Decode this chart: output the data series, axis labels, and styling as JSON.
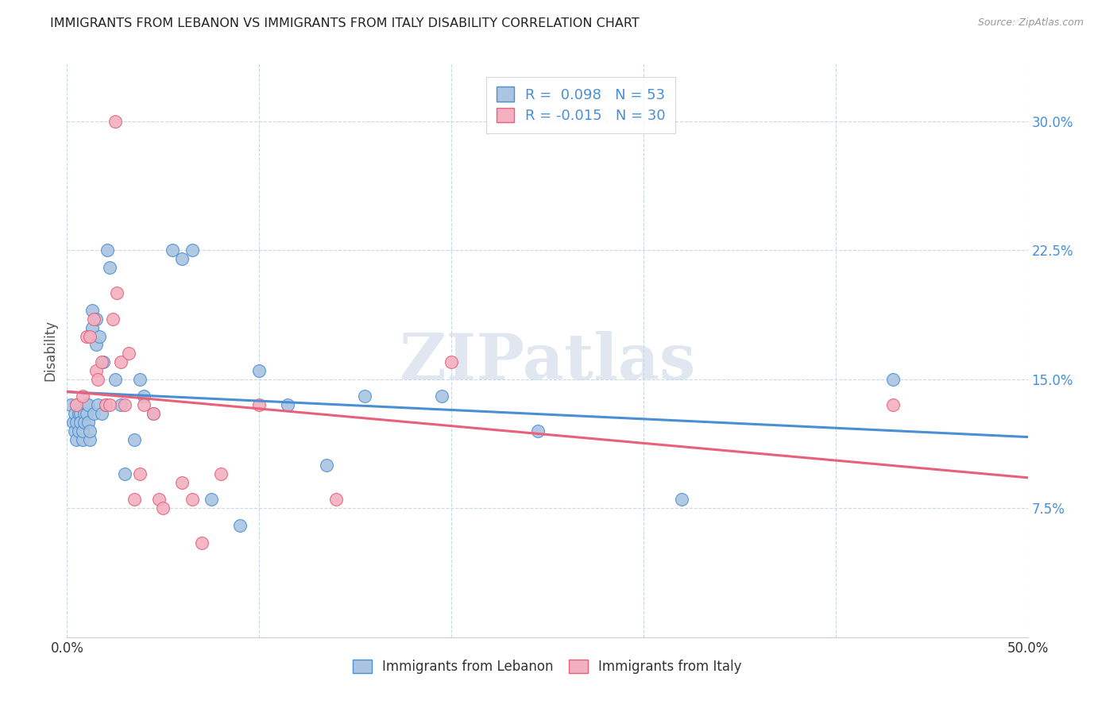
{
  "title": "IMMIGRANTS FROM LEBANON VS IMMIGRANTS FROM ITALY DISABILITY CORRELATION CHART",
  "source": "Source: ZipAtlas.com",
  "ylabel": "Disability",
  "xlim": [
    0.0,
    0.5
  ],
  "ylim": [
    0.0,
    0.3334
  ],
  "yticks": [
    0.075,
    0.15,
    0.225,
    0.3
  ],
  "ytick_labels": [
    "7.5%",
    "15.0%",
    "22.5%",
    "30.0%"
  ],
  "xticks": [
    0.0,
    0.1,
    0.2,
    0.3,
    0.4,
    0.5
  ],
  "legend_label1": "Immigrants from Lebanon",
  "legend_label2": "Immigrants from Italy",
  "color_lebanon": "#aac4e2",
  "color_italy": "#f2b0c0",
  "trendline_color_lebanon": "#4a8fd4",
  "trendline_color_italy": "#e8607a",
  "legend_text_color": "#4a8fd4",
  "watermark": "ZIPatlas",
  "watermark_color": "#ccd8e8",
  "lebanon_x": [
    0.002,
    0.003,
    0.004,
    0.004,
    0.005,
    0.005,
    0.005,
    0.006,
    0.006,
    0.007,
    0.007,
    0.008,
    0.008,
    0.009,
    0.009,
    0.01,
    0.01,
    0.011,
    0.011,
    0.012,
    0.012,
    0.013,
    0.013,
    0.014,
    0.015,
    0.015,
    0.016,
    0.017,
    0.018,
    0.019,
    0.02,
    0.021,
    0.022,
    0.025,
    0.028,
    0.03,
    0.035,
    0.038,
    0.04,
    0.045,
    0.055,
    0.06,
    0.065,
    0.075,
    0.09,
    0.1,
    0.115,
    0.135,
    0.155,
    0.195,
    0.245,
    0.32,
    0.43
  ],
  "lebanon_y": [
    0.135,
    0.125,
    0.12,
    0.13,
    0.135,
    0.125,
    0.115,
    0.13,
    0.12,
    0.13,
    0.125,
    0.115,
    0.12,
    0.13,
    0.125,
    0.135,
    0.13,
    0.135,
    0.125,
    0.115,
    0.12,
    0.18,
    0.19,
    0.13,
    0.17,
    0.185,
    0.135,
    0.175,
    0.13,
    0.16,
    0.135,
    0.225,
    0.215,
    0.15,
    0.135,
    0.095,
    0.115,
    0.15,
    0.14,
    0.13,
    0.225,
    0.22,
    0.225,
    0.08,
    0.065,
    0.155,
    0.135,
    0.1,
    0.14,
    0.14,
    0.12,
    0.08,
    0.15
  ],
  "italy_x": [
    0.005,
    0.008,
    0.01,
    0.012,
    0.014,
    0.015,
    0.016,
    0.018,
    0.02,
    0.022,
    0.024,
    0.025,
    0.026,
    0.028,
    0.03,
    0.032,
    0.035,
    0.038,
    0.04,
    0.045,
    0.048,
    0.05,
    0.06,
    0.065,
    0.07,
    0.08,
    0.1,
    0.14,
    0.2,
    0.43
  ],
  "italy_y": [
    0.135,
    0.14,
    0.175,
    0.175,
    0.185,
    0.155,
    0.15,
    0.16,
    0.135,
    0.135,
    0.185,
    0.3,
    0.2,
    0.16,
    0.135,
    0.165,
    0.08,
    0.095,
    0.135,
    0.13,
    0.08,
    0.075,
    0.09,
    0.08,
    0.055,
    0.095,
    0.135,
    0.08,
    0.16,
    0.135
  ],
  "trendline_leb_x0": 0.0,
  "trendline_leb_x1": 0.5,
  "trendline_ita_x0": 0.0,
  "trendline_ita_x1": 0.5,
  "grid_color": "#c8d8e8",
  "spine_color": "#cccccc"
}
